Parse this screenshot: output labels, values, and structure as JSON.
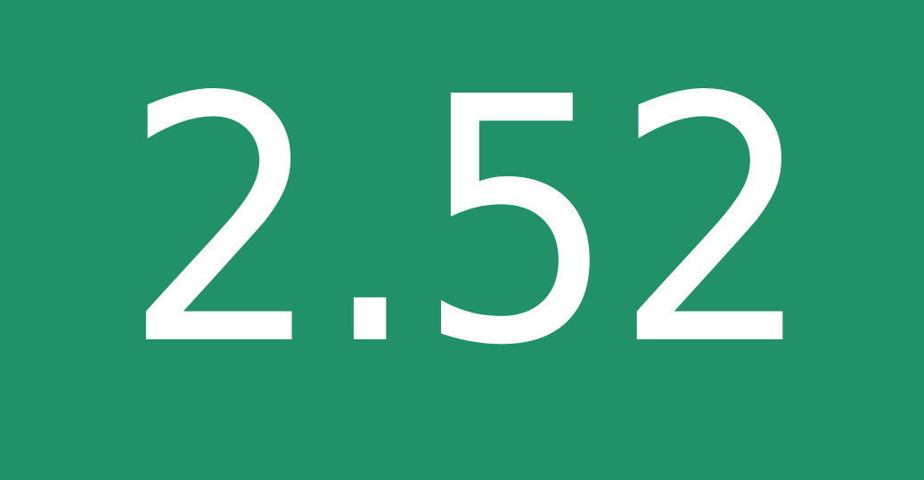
{
  "tile": {
    "value": "2.52",
    "background_color": "#219168",
    "text_color": "#ffffff"
  }
}
